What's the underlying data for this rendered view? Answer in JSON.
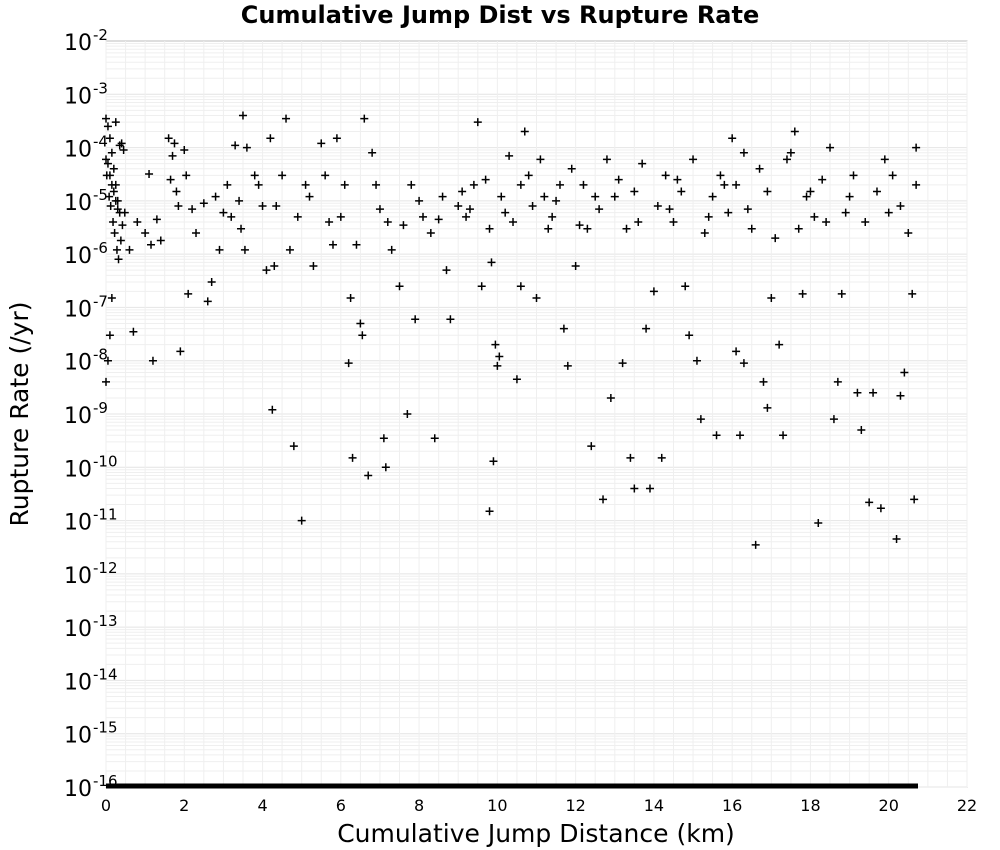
{
  "chart_data": {
    "type": "scatter",
    "title": "Cumulative Jump Dist vs Rupture Rate",
    "xlabel": "Cumulative Jump Distance (km)",
    "ylabel": "Rupture Rate (/yr)",
    "xlim": [
      0,
      22
    ],
    "ylim": [
      1e-16,
      0.01
    ],
    "yscale": "log",
    "grid": true,
    "marker": "+",
    "marker_color": "#000000",
    "x_ticks": [
      "0",
      "2",
      "4",
      "6",
      "8",
      "10",
      "12",
      "14",
      "16",
      "18",
      "20",
      "22"
    ],
    "y_ticks": [
      {
        "base": "10",
        "exp": "-2"
      },
      {
        "base": "10",
        "exp": "-3"
      },
      {
        "base": "10",
        "exp": "-4"
      },
      {
        "base": "10",
        "exp": "-5"
      },
      {
        "base": "10",
        "exp": "-6"
      },
      {
        "base": "10",
        "exp": "-7"
      },
      {
        "base": "10",
        "exp": "-8"
      },
      {
        "base": "10",
        "exp": "-9"
      },
      {
        "base": "10",
        "exp": "-10"
      },
      {
        "base": "10",
        "exp": "-11"
      },
      {
        "base": "10",
        "exp": "-12"
      },
      {
        "base": "10",
        "exp": "-13"
      },
      {
        "base": "10",
        "exp": "-14"
      },
      {
        "base": "10",
        "exp": "-15"
      },
      {
        "base": "10",
        "exp": "-16"
      }
    ],
    "points": [
      [
        0.0,
        0.00035
      ],
      [
        0.05,
        0.00025
      ],
      [
        0.1,
        0.00015
      ],
      [
        0.15,
        8e-05
      ],
      [
        0.2,
        4e-05
      ],
      [
        0.25,
        2e-05
      ],
      [
        0.3,
        1e-05
      ],
      [
        0.35,
        6e-06
      ],
      [
        0.4,
        0.00012
      ],
      [
        0.45,
        9e-05
      ],
      [
        0.05,
        5e-05
      ],
      [
        0.1,
        3e-05
      ],
      [
        0.15,
        2e-05
      ],
      [
        0.2,
        1.5e-05
      ],
      [
        0.25,
        1e-05
      ],
      [
        0.3,
        7e-06
      ],
      [
        0.0,
        6e-05
      ],
      [
        0.02,
        3e-05
      ],
      [
        0.08,
        1.2e-05
      ],
      [
        0.12,
        8e-06
      ],
      [
        0.18,
        4e-06
      ],
      [
        0.22,
        2.5e-06
      ],
      [
        0.28,
        1.2e-06
      ],
      [
        0.32,
        8e-07
      ],
      [
        0.38,
        1.8e-06
      ],
      [
        0.42,
        3.5e-06
      ],
      [
        0.48,
        6e-06
      ],
      [
        0.15,
        1.5e-07
      ],
      [
        0.1,
        3e-08
      ],
      [
        0.0,
        4e-09
      ],
      [
        0.05,
        1e-08
      ],
      [
        0.25,
        0.0003
      ],
      [
        0.35,
        0.00011
      ],
      [
        0.7,
        3.5e-08
      ],
      [
        0.6,
        1.2e-06
      ],
      [
        0.8,
        4e-06
      ],
      [
        1.0,
        2.5e-06
      ],
      [
        1.1,
        3.2e-05
      ],
      [
        1.15,
        1.5e-06
      ],
      [
        1.2,
        1e-08
      ],
      [
        1.3,
        4.5e-06
      ],
      [
        1.4,
        1.8e-06
      ],
      [
        1.6,
        0.00015
      ],
      [
        1.65,
        2.5e-05
      ],
      [
        1.7,
        7e-05
      ],
      [
        1.75,
        0.00012
      ],
      [
        1.8,
        1.5e-05
      ],
      [
        1.85,
        8e-06
      ],
      [
        1.9,
        1.5e-08
      ],
      [
        2.0,
        9e-05
      ],
      [
        2.05,
        3e-05
      ],
      [
        2.1,
        1.8e-07
      ],
      [
        2.2,
        7e-06
      ],
      [
        2.3,
        2.5e-06
      ],
      [
        2.5,
        9e-06
      ],
      [
        2.6,
        1.3e-07
      ],
      [
        2.7,
        3e-07
      ],
      [
        2.8,
        1.2e-05
      ],
      [
        2.9,
        1.2e-06
      ],
      [
        3.0,
        6e-06
      ],
      [
        3.1,
        2e-05
      ],
      [
        3.2,
        5e-06
      ],
      [
        3.3,
        0.00011
      ],
      [
        3.4,
        1e-05
      ],
      [
        3.5,
        0.0004
      ],
      [
        3.6,
        0.0001
      ],
      [
        3.45,
        3e-06
      ],
      [
        3.55,
        1.2e-06
      ],
      [
        3.8,
        3e-05
      ],
      [
        3.9,
        2e-05
      ],
      [
        4.0,
        8e-06
      ],
      [
        4.1,
        5e-07
      ],
      [
        4.2,
        0.00015
      ],
      [
        4.25,
        1.2e-09
      ],
      [
        4.3,
        6e-07
      ],
      [
        4.35,
        8e-06
      ],
      [
        4.5,
        3e-05
      ],
      [
        4.6,
        0.00035
      ],
      [
        4.7,
        1.2e-06
      ],
      [
        4.8,
        2.5e-10
      ],
      [
        4.9,
        5e-06
      ],
      [
        5.0,
        1e-11
      ],
      [
        5.1,
        2e-05
      ],
      [
        5.2,
        1.2e-05
      ],
      [
        5.3,
        6e-07
      ],
      [
        5.5,
        0.00012
      ],
      [
        5.6,
        3e-05
      ],
      [
        5.7,
        4e-06
      ],
      [
        5.8,
        1.5e-06
      ],
      [
        5.9,
        0.00015
      ],
      [
        6.0,
        5e-06
      ],
      [
        6.1,
        2e-05
      ],
      [
        6.2,
        9e-09
      ],
      [
        6.25,
        1.5e-07
      ],
      [
        6.3,
        1.5e-10
      ],
      [
        6.4,
        1.5e-06
      ],
      [
        6.5,
        5e-08
      ],
      [
        6.55,
        3e-08
      ],
      [
        6.6,
        0.00035
      ],
      [
        6.7,
        7e-11
      ],
      [
        6.8,
        8e-05
      ],
      [
        6.9,
        2e-05
      ],
      [
        7.0,
        7e-06
      ],
      [
        7.1,
        3.5e-10
      ],
      [
        7.15,
        1e-10
      ],
      [
        7.2,
        4e-06
      ],
      [
        7.3,
        1.2e-06
      ],
      [
        7.5,
        2.5e-07
      ],
      [
        7.6,
        3.5e-06
      ],
      [
        7.7,
        1e-09
      ],
      [
        7.8,
        2e-05
      ],
      [
        7.9,
        6e-08
      ],
      [
        8.0,
        1e-05
      ],
      [
        8.1,
        5e-06
      ],
      [
        8.3,
        2.5e-06
      ],
      [
        8.4,
        3.5e-10
      ],
      [
        8.5,
        4.5e-06
      ],
      [
        8.6,
        1.2e-05
      ],
      [
        8.7,
        5e-07
      ],
      [
        8.8,
        6e-08
      ],
      [
        9.0,
        8e-06
      ],
      [
        9.1,
        1.5e-05
      ],
      [
        9.3,
        7e-06
      ],
      [
        9.5,
        0.0003
      ],
      [
        9.6,
        2.5e-07
      ],
      [
        9.7,
        2.5e-05
      ],
      [
        9.8,
        1.5e-11
      ],
      [
        9.85,
        7e-07
      ],
      [
        9.9,
        1.3e-10
      ],
      [
        9.95,
        2e-08
      ],
      [
        10.0,
        8e-09
      ],
      [
        10.05,
        1.2e-08
      ],
      [
        10.2,
        6e-06
      ],
      [
        10.3,
        7e-05
      ],
      [
        10.5,
        4.5e-09
      ],
      [
        10.6,
        2.5e-07
      ],
      [
        10.7,
        0.0002
      ],
      [
        10.8,
        3e-05
      ],
      [
        11.0,
        1.5e-07
      ],
      [
        11.2,
        1.2e-05
      ],
      [
        11.4,
        5e-06
      ],
      [
        11.6,
        2e-05
      ],
      [
        11.7,
        4e-08
      ],
      [
        11.8,
        8e-09
      ],
      [
        12.0,
        6e-07
      ],
      [
        12.2,
        2e-05
      ],
      [
        12.3,
        3e-06
      ],
      [
        12.4,
        2.5e-10
      ],
      [
        12.6,
        7e-06
      ],
      [
        12.7,
        2.5e-11
      ],
      [
        12.9,
        2e-09
      ],
      [
        13.0,
        1.2e-05
      ],
      [
        13.2,
        9e-09
      ],
      [
        13.4,
        1.5e-10
      ],
      [
        13.5,
        4e-11
      ],
      [
        13.6,
        4e-06
      ],
      [
        13.8,
        4e-08
      ],
      [
        13.9,
        4e-11
      ],
      [
        14.0,
        2e-07
      ],
      [
        14.2,
        1.5e-10
      ],
      [
        14.4,
        7e-06
      ],
      [
        14.6,
        2.5e-05
      ],
      [
        14.8,
        2.5e-07
      ],
      [
        14.9,
        3e-08
      ],
      [
        15.1,
        1e-08
      ],
      [
        15.2,
        8e-10
      ],
      [
        15.4,
        5e-06
      ],
      [
        15.6,
        4e-10
      ],
      [
        15.8,
        2e-05
      ],
      [
        16.0,
        0.00015
      ],
      [
        16.1,
        1.5e-08
      ],
      [
        16.2,
        4e-10
      ],
      [
        16.3,
        9e-09
      ],
      [
        16.4,
        7e-06
      ],
      [
        16.6,
        3.5e-12
      ],
      [
        16.8,
        4e-09
      ],
      [
        16.9,
        1.3e-09
      ],
      [
        17.0,
        1.5e-07
      ],
      [
        17.2,
        2e-08
      ],
      [
        17.3,
        4e-10
      ],
      [
        17.5,
        8e-05
      ],
      [
        17.6,
        0.0002
      ],
      [
        17.8,
        1.8e-07
      ],
      [
        18.0,
        1.5e-05
      ],
      [
        18.2,
        9e-12
      ],
      [
        18.4,
        4e-06
      ],
      [
        18.6,
        8e-10
      ],
      [
        18.7,
        4e-09
      ],
      [
        18.8,
        1.8e-07
      ],
      [
        19.0,
        1.2e-05
      ],
      [
        19.2,
        2.5e-09
      ],
      [
        19.3,
        5e-10
      ],
      [
        19.5,
        2.2e-11
      ],
      [
        19.6,
        2.5e-09
      ],
      [
        19.8,
        1.7e-11
      ],
      [
        20.0,
        6e-06
      ],
      [
        20.2,
        4.5e-12
      ],
      [
        20.3,
        2.2e-09
      ],
      [
        20.4,
        6e-09
      ],
      [
        20.6,
        1.8e-07
      ],
      [
        20.65,
        2.5e-11
      ],
      [
        20.7,
        2e-05
      ],
      [
        20.7,
        0.0001
      ],
      [
        20.5,
        2.5e-06
      ],
      [
        20.3,
        8e-06
      ],
      [
        20.1,
        3e-05
      ],
      [
        19.9,
        6e-05
      ],
      [
        19.7,
        1.5e-05
      ],
      [
        19.4,
        4e-06
      ],
      [
        19.1,
        3e-05
      ],
      [
        18.9,
        6e-06
      ],
      [
        18.5,
        0.0001
      ],
      [
        18.3,
        2.5e-05
      ],
      [
        18.1,
        5e-06
      ],
      [
        17.9,
        1.2e-05
      ],
      [
        17.7,
        3e-06
      ],
      [
        17.4,
        6e-05
      ],
      [
        17.1,
        2e-06
      ],
      [
        16.9,
        1.5e-05
      ],
      [
        16.7,
        4e-05
      ],
      [
        16.5,
        3e-06
      ],
      [
        16.3,
        8e-05
      ],
      [
        16.1,
        2e-05
      ],
      [
        15.9,
        6e-06
      ],
      [
        15.7,
        3e-05
      ],
      [
        15.5,
        1.2e-05
      ],
      [
        15.3,
        2.5e-06
      ],
      [
        15.0,
        6e-05
      ],
      [
        14.7,
        1.5e-05
      ],
      [
        14.5,
        4e-06
      ],
      [
        14.3,
        3e-05
      ],
      [
        14.1,
        8e-06
      ],
      [
        13.7,
        5e-05
      ],
      [
        13.5,
        1.5e-05
      ],
      [
        13.3,
        3e-06
      ],
      [
        13.1,
        2.5e-05
      ],
      [
        12.8,
        6e-05
      ],
      [
        12.5,
        1.2e-05
      ],
      [
        12.1,
        3.5e-06
      ],
      [
        11.9,
        4e-05
      ],
      [
        11.5,
        1e-05
      ],
      [
        11.3,
        3e-06
      ],
      [
        11.1,
        6e-05
      ],
      [
        10.9,
        8e-06
      ],
      [
        10.6,
        2e-05
      ],
      [
        10.4,
        4e-06
      ],
      [
        10.1,
        1.2e-05
      ],
      [
        9.8,
        3e-06
      ],
      [
        9.4,
        2e-05
      ],
      [
        9.2,
        5e-06
      ]
    ]
  }
}
